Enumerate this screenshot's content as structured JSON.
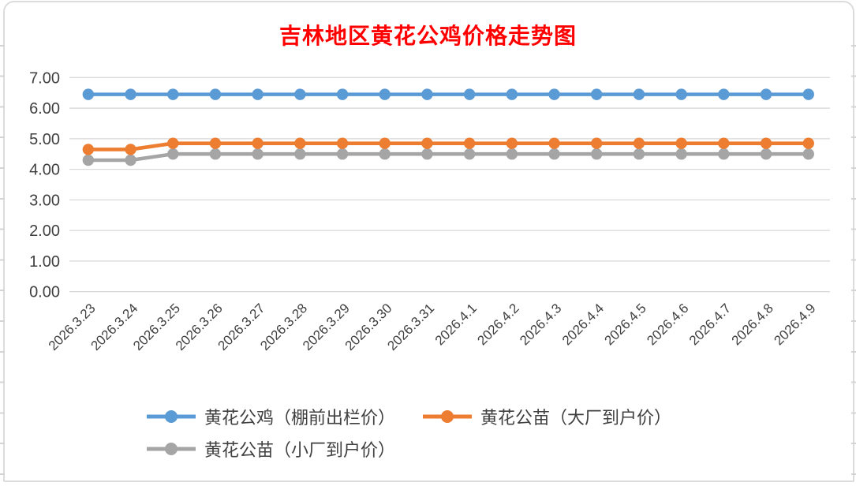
{
  "chart_data": {
    "type": "line",
    "title": "吉林地区黄花公鸡价格走势图",
    "title_color": "#ff0000",
    "categories": [
      "2026.3.23",
      "2026.3.24",
      "2026.3.25",
      "2026.3.26",
      "2026.3.27",
      "2026.3.28",
      "2026.3.29",
      "2026.3.30",
      "2026.3.31",
      "2026.4.1",
      "2026.4.2",
      "2026.4.3",
      "2026.4.4",
      "2026.4.5",
      "2026.4.6",
      "2026.4.7",
      "2026.4.8",
      "2026.4.9"
    ],
    "series": [
      {
        "name": "黄花公鸡（棚前出栏价）",
        "color": "#5b9bd5",
        "values": [
          6.45,
          6.45,
          6.45,
          6.45,
          6.45,
          6.45,
          6.45,
          6.45,
          6.45,
          6.45,
          6.45,
          6.45,
          6.45,
          6.45,
          6.45,
          6.45,
          6.45,
          6.45
        ]
      },
      {
        "name": "黄花公苗（大厂到户价）",
        "color": "#ed7d31",
        "values": [
          4.65,
          4.65,
          4.85,
          4.85,
          4.85,
          4.85,
          4.85,
          4.85,
          4.85,
          4.85,
          4.85,
          4.85,
          4.85,
          4.85,
          4.85,
          4.85,
          4.85,
          4.85
        ]
      },
      {
        "name": "黄花公苗（小厂到户价）",
        "color": "#a5a5a5",
        "values": [
          4.3,
          4.3,
          4.5,
          4.5,
          4.5,
          4.5,
          4.5,
          4.5,
          4.5,
          4.5,
          4.5,
          4.5,
          4.5,
          4.5,
          4.5,
          4.5,
          4.5,
          4.5
        ]
      }
    ],
    "xlabel": "",
    "ylabel": "",
    "ylim": [
      0,
      7
    ],
    "y_tick_step": 1,
    "y_tick_labels": [
      "0.00",
      "1.00",
      "2.00",
      "3.00",
      "4.00",
      "5.00",
      "6.00",
      "7.00"
    ],
    "grid": true,
    "legend_position": "bottom",
    "colors": {
      "gridline": "#d9d9d9",
      "axis_text": "#404040",
      "legend_text": "#404040"
    }
  }
}
